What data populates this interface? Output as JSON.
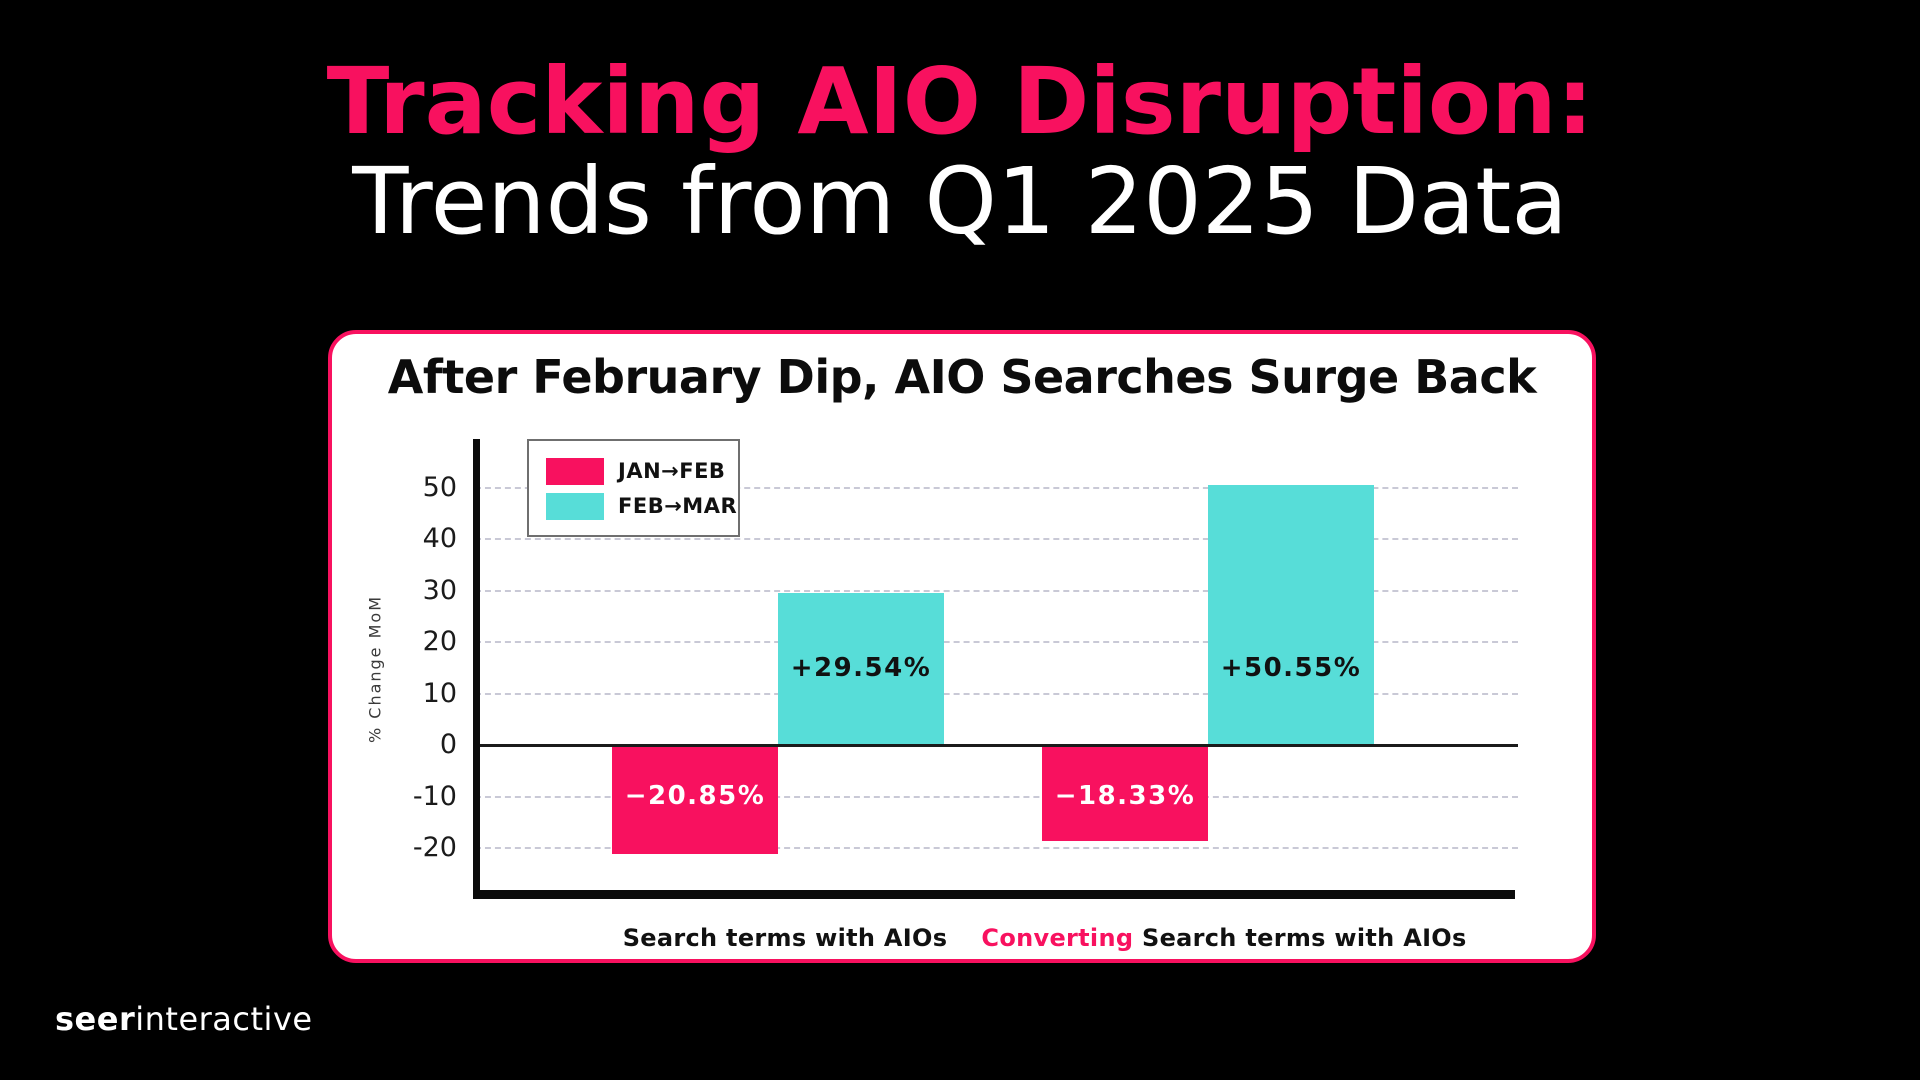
{
  "title": {
    "line1": "Tracking AIO Disruption:",
    "line2": "Trends from Q1 2025 Data"
  },
  "logo": {
    "bold": "seer",
    "regular": "interactive"
  },
  "colors": {
    "background": "#000000",
    "accent_pink": "#F8115F",
    "accent_teal": "#57DDD8",
    "card_background": "#FFFFFF",
    "gridline": "#C9C9D6"
  },
  "chart_data": {
    "type": "bar",
    "title": "After February Dip, AIO Searches Surge Back",
    "ylabel": "% Change MoM",
    "ylim": [
      -29,
      59
    ],
    "yticks": [
      50,
      40,
      30,
      20,
      10,
      0,
      -10,
      -20
    ],
    "grid": "horizontal-dashed",
    "legend_position": "upper-left",
    "categories": [
      {
        "highlight": "",
        "label": "Search terms with AIOs"
      },
      {
        "highlight": "Converting",
        "label": " Search terms with AIOs"
      }
    ],
    "series": [
      {
        "name": "JAN→FEB",
        "color": "#F8115F",
        "label_color": "#FFFFFF",
        "values": [
          -20.85,
          -18.33
        ],
        "labels": [
          "−20.85%",
          "−18.33%"
        ]
      },
      {
        "name": "FEB→MAR",
        "color": "#57DDD8",
        "label_color": "#111111",
        "values": [
          29.54,
          50.55
        ],
        "labels": [
          "+29.54%",
          "+50.55%"
        ]
      }
    ]
  }
}
